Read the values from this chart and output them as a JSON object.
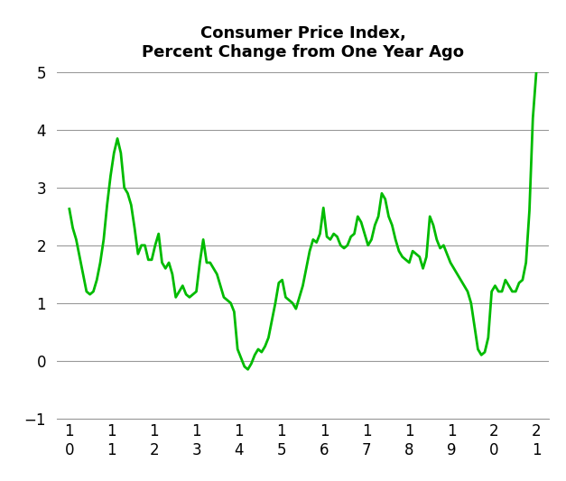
{
  "title": "Consumer Price Index,\nPercent Change from One Year Ago",
  "line_color": "#00bb00",
  "line_width": 2.0,
  "background_color": "#ffffff",
  "grid_color": "#999999",
  "ylim": [
    -1,
    5
  ],
  "yticks": [
    -1,
    0,
    1,
    2,
    3,
    4,
    5
  ],
  "xlabel_rows": [
    [
      "1",
      "1",
      "1",
      "1",
      "1",
      "1",
      "1",
      "1",
      "1",
      "1",
      "2",
      "2"
    ],
    [
      "0",
      "1",
      "2",
      "3",
      "4",
      "5",
      "6",
      "7",
      "8",
      "9",
      "0",
      "1"
    ]
  ],
  "values": [
    2.63,
    2.3,
    2.1,
    1.8,
    1.5,
    1.2,
    1.15,
    1.2,
    1.4,
    1.7,
    2.1,
    2.7,
    3.2,
    3.6,
    3.85,
    3.6,
    3.0,
    2.9,
    2.7,
    2.3,
    1.85,
    2.0,
    2.0,
    1.75,
    1.75,
    2.0,
    2.2,
    1.7,
    1.6,
    1.7,
    1.5,
    1.1,
    1.2,
    1.3,
    1.15,
    1.1,
    1.15,
    1.2,
    1.7,
    2.1,
    1.7,
    1.7,
    1.6,
    1.5,
    1.3,
    1.1,
    1.05,
    1.0,
    0.85,
    0.2,
    0.05,
    -0.1,
    -0.15,
    -0.05,
    0.1,
    0.2,
    0.15,
    0.25,
    0.4,
    0.7,
    1.0,
    1.35,
    1.4,
    1.1,
    1.05,
    1.0,
    0.9,
    1.1,
    1.3,
    1.6,
    1.9,
    2.1,
    2.05,
    2.2,
    2.65,
    2.15,
    2.1,
    2.2,
    2.15,
    2.0,
    1.95,
    2.0,
    2.15,
    2.2,
    2.5,
    2.4,
    2.2,
    2.0,
    2.1,
    2.35,
    2.5,
    2.9,
    2.8,
    2.5,
    2.35,
    2.1,
    1.9,
    1.8,
    1.75,
    1.7,
    1.9,
    1.85,
    1.8,
    1.6,
    1.8,
    2.5,
    2.35,
    2.1,
    1.95,
    2.0,
    1.85,
    1.7,
    1.6,
    1.5,
    1.4,
    1.3,
    1.2,
    1.0,
    0.6,
    0.2,
    0.1,
    0.15,
    0.4,
    1.2,
    1.3,
    1.2,
    1.2,
    1.4,
    1.3,
    1.2,
    1.2,
    1.35,
    1.4,
    1.7,
    2.6,
    4.2,
    5.0
  ]
}
